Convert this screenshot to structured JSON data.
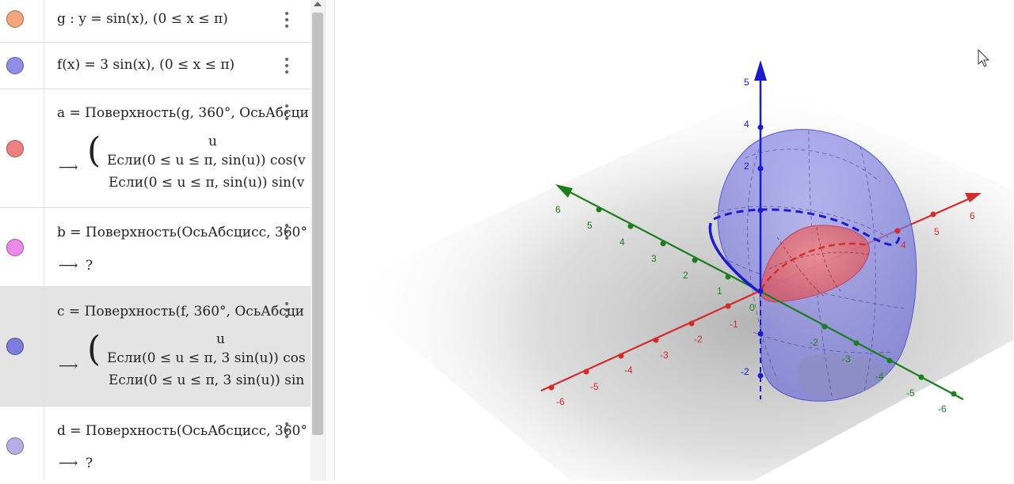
{
  "algebra": {
    "rows": [
      {
        "color": "#f6a67a",
        "line1": "g :  y = sin(x),     (0 ≤ x ≤ π)"
      },
      {
        "color": "#8f8fe8",
        "line1": "f(x)  =  3  sin(x),     (0 ≤ x ≤ π)"
      },
      {
        "color": "#ef8080",
        "line1": "a  =  Поверхность(g, 360°, ОсьАбсци",
        "arrow": "⟶",
        "top": "u",
        "line2": "Если(0 ≤ u ≤ π, sin(u))  cos(v",
        "line3": "Если(0 ≤ u ≤ π, sin(u))  sin(v"
      },
      {
        "color": "#ec88ec",
        "line1": "b  =  Поверхность(ОсьАбсцисс, 360°",
        "arrow": "⟶",
        "result": "?"
      },
      {
        "color": "#7d7ddf",
        "line1": "c  =  Поверхность(f, 360°, ОсьАбсци",
        "arrow": "⟶",
        "top": "u",
        "line2": "Если(0 ≤ u ≤ π, 3  sin(u))  cos",
        "line3": "Если(0 ≤ u ≤ π, 3  sin(u))  sin"
      },
      {
        "color": "#b4b0e6",
        "line1": "d  =  Поверхность(ОсьАбсцисс, 360°",
        "arrow": "⟶",
        "result": "?"
      }
    ]
  },
  "graphics": {
    "axes": {
      "x_color": "#d22c2c",
      "y_color": "#1b7d1b",
      "z_color": "#1a1ad0",
      "x_labels": [
        "-6",
        "-5",
        "-4",
        "-3",
        "-2",
        "-1",
        "4",
        "5",
        "6"
      ],
      "y_labels": [
        "6",
        "5",
        "4",
        "3",
        "2",
        "1",
        "-2",
        "-3",
        "-4",
        "-5",
        "-6"
      ],
      "z_labels": [
        "5",
        "4",
        "2",
        "-2"
      ],
      "origin_label": "0"
    },
    "surface_colors": {
      "outer": "#7878e0",
      "inner": "#e05a5a"
    },
    "cursor_icon": "pointer-arrow-icon"
  }
}
